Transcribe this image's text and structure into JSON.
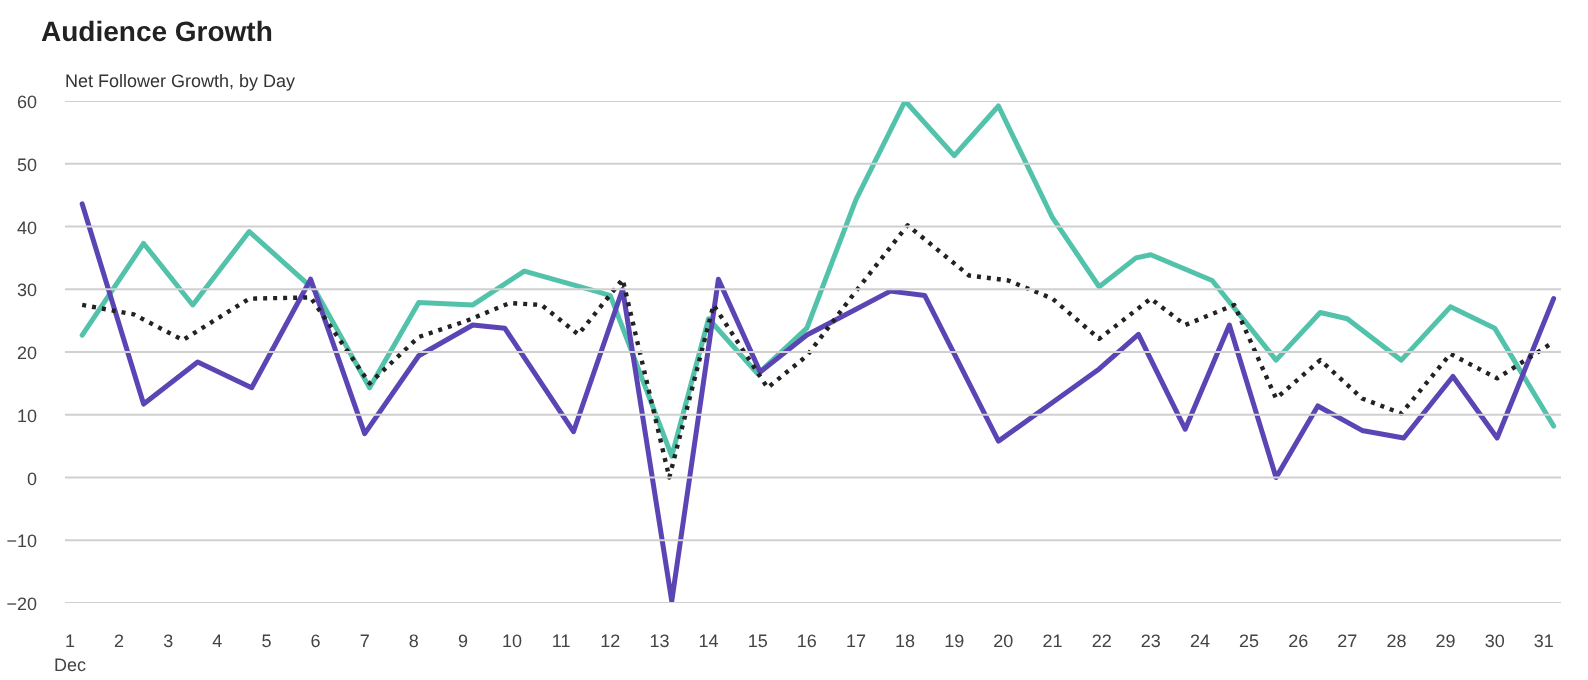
{
  "chart_data": {
    "type": "line",
    "title": "Audience Growth",
    "subtitle": "Net Follower Growth, by Day",
    "line_style": "solid",
    "marker": "none",
    "grid": "y",
    "xlim": [
      0.9,
      31.35
    ],
    "ylim": [
      -20,
      60
    ],
    "xticks": [
      {
        "value": 1,
        "label": "1\nDec"
      },
      2,
      3,
      4,
      5,
      6,
      7,
      8,
      9,
      10,
      11,
      12,
      13,
      14,
      15,
      16,
      17,
      18,
      19,
      20,
      21,
      22,
      23,
      24,
      25,
      26,
      27,
      28,
      29,
      30,
      31
    ],
    "yticks": [
      -20,
      -10,
      0,
      10,
      20,
      30,
      40,
      50,
      60
    ],
    "series": [
      {
        "color": "#52c2ab",
        "x": [
          1.25,
          2.5,
          3.5,
          4.65,
          6,
          7.1,
          8.1,
          9.2,
          10.25,
          11.7,
          12,
          13.25,
          14,
          15,
          16,
          17,
          18,
          19,
          19.9,
          21,
          21.95,
          22.7,
          23,
          24.25,
          25.55,
          26.45,
          27,
          28.1,
          29.1,
          30,
          31.2
        ],
        "values": [
          22.7,
          37.3,
          27.5,
          39.2,
          29.7,
          14.3,
          27.9,
          27.5,
          32.9,
          29.7,
          29,
          3.4,
          25.3,
          16.5,
          23.8,
          44.3,
          60,
          51.3,
          59.2,
          41.4,
          30.4,
          35,
          35.5,
          31.4,
          18.7,
          26.3,
          25.3,
          18.7,
          27.2,
          23.8,
          8.2
        ]
      },
      {
        "color": "#5b45b5",
        "x": [
          1.25,
          2.5,
          3.6,
          4.7,
          5.9,
          7,
          8.1,
          9.2,
          9.85,
          11.25,
          12.25,
          13.25,
          14.2,
          15.05,
          16,
          17,
          17.7,
          18.4,
          19.9,
          20.9,
          21.95,
          22.75,
          23.7,
          24.6,
          25.55,
          26.4,
          27.3,
          28.15,
          29.15,
          30.05,
          31.2
        ],
        "values": [
          43.6,
          11.7,
          18.4,
          14.3,
          31.6,
          7,
          19.4,
          24.3,
          23.8,
          7.3,
          30,
          -19.7,
          31.6,
          16.8,
          22.7,
          26.8,
          29.7,
          29,
          5.8,
          11.4,
          17.3,
          22.8,
          7.7,
          24.3,
          0,
          11.4,
          7.5,
          6.3,
          16.1,
          6.3,
          28.5
        ]
      },
      {
        "color": "#222222",
        "line_style": "dotted",
        "x": [
          1.25,
          2.3,
          3.3,
          4.65,
          5.9,
          7.1,
          8.1,
          9.05,
          9.95,
          10.6,
          11.35,
          12.25,
          13.2,
          14.1,
          15.2,
          16,
          17,
          18.05,
          19.3,
          20.1,
          21,
          21.95,
          23,
          23.7,
          24.7,
          25.55,
          26.45,
          27.3,
          28.1,
          29.1,
          30.05,
          31.2
        ],
        "values": [
          27.5,
          26,
          21.9,
          28.5,
          28.7,
          15,
          22.4,
          24.9,
          27.8,
          27.5,
          22.8,
          31.6,
          0,
          27.5,
          14.3,
          19.4,
          29.7,
          40.2,
          32.2,
          31.4,
          28.5,
          22.1,
          28.5,
          24.3,
          27.5,
          12.6,
          18.7,
          12.6,
          10.2,
          19.7,
          15.8,
          21.6
        ]
      }
    ]
  }
}
